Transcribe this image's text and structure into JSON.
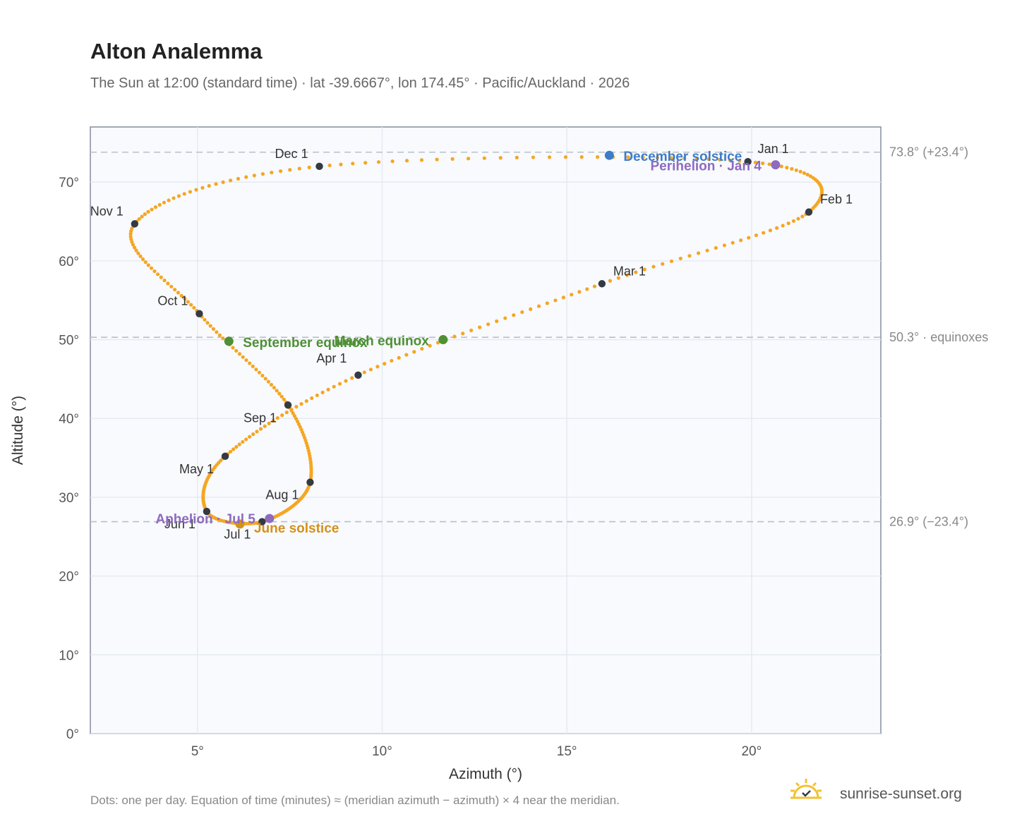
{
  "header": {
    "title": "Alton Analemma",
    "subtitle": "The Sun at 12:00 (standard time) · lat -39.6667°, lon 174.45° · Pacific/Auckland · 2026"
  },
  "chart_data": {
    "type": "scatter",
    "xlabel": "Azimuth (°)",
    "ylabel": "Altitude (°)",
    "xlim": [
      2.1,
      23.5
    ],
    "ylim": [
      0,
      77
    ],
    "x_ticks": [
      "5°",
      "10°",
      "15°",
      "20°"
    ],
    "x_tick_values": [
      5,
      10,
      15,
      20
    ],
    "y_ticks": [
      "0°",
      "10°",
      "20°",
      "30°",
      "40°",
      "50°",
      "60°",
      "70°"
    ],
    "y_tick_values": [
      0,
      10,
      20,
      30,
      40,
      50,
      60,
      70
    ],
    "grid": true,
    "series_color": "#f5a623",
    "month_marker_color": "#333a44",
    "reference_lines": [
      {
        "y": 73.8,
        "label": "73.8° (+23.4°)"
      },
      {
        "y": 50.3,
        "label": "50.3° · equinoxes"
      },
      {
        "y": 26.9,
        "label": "26.9° (−23.4°)"
      }
    ],
    "month_markers": [
      {
        "label": "Jan 1",
        "x": 19.9,
        "y": 72.6
      },
      {
        "label": "Feb 1",
        "x": 21.55,
        "y": 66.2
      },
      {
        "label": "Mar 1",
        "x": 15.95,
        "y": 57.1
      },
      {
        "label": "Apr 1",
        "x": 9.35,
        "y": 45.5
      },
      {
        "label": "May 1",
        "x": 5.75,
        "y": 35.2
      },
      {
        "label": "Jun 1",
        "x": 5.25,
        "y": 28.2
      },
      {
        "label": "Jul 1",
        "x": 6.75,
        "y": 26.9
      },
      {
        "label": "Aug 1",
        "x": 8.05,
        "y": 31.9
      },
      {
        "label": "Sep 1",
        "x": 7.45,
        "y": 41.7
      },
      {
        "label": "Oct 1",
        "x": 5.05,
        "y": 53.3
      },
      {
        "label": "Nov 1",
        "x": 3.3,
        "y": 64.7
      },
      {
        "label": "Dec 1",
        "x": 8.3,
        "y": 72.0
      }
    ],
    "events": [
      {
        "label": "December solstice",
        "x": 16.15,
        "y": 73.4,
        "color": "#3d7cc9"
      },
      {
        "label": "Perihelion · Jan 4",
        "x": 20.65,
        "y": 72.2,
        "color": "#8e6bbf"
      },
      {
        "label": "March equinox",
        "x": 11.65,
        "y": 50.0,
        "color": "#4f8f35"
      },
      {
        "label": "September equinox",
        "x": 5.85,
        "y": 49.8,
        "color": "#4f8f35"
      },
      {
        "label": "June solstice",
        "x": 6.15,
        "y": 26.6,
        "color": "#d4901a"
      },
      {
        "label": "Aphelion · Jul 5",
        "x": 6.95,
        "y": 27.3,
        "color": "#8e6bbf"
      }
    ]
  },
  "footer": {
    "note": "Dots: one per day. Equation of time (minutes) ≈ (meridian azimuth − azimuth) × 4 near the meridian.",
    "brand": "sunrise-sunset.org",
    "brand_icon": "sun-check-icon"
  }
}
